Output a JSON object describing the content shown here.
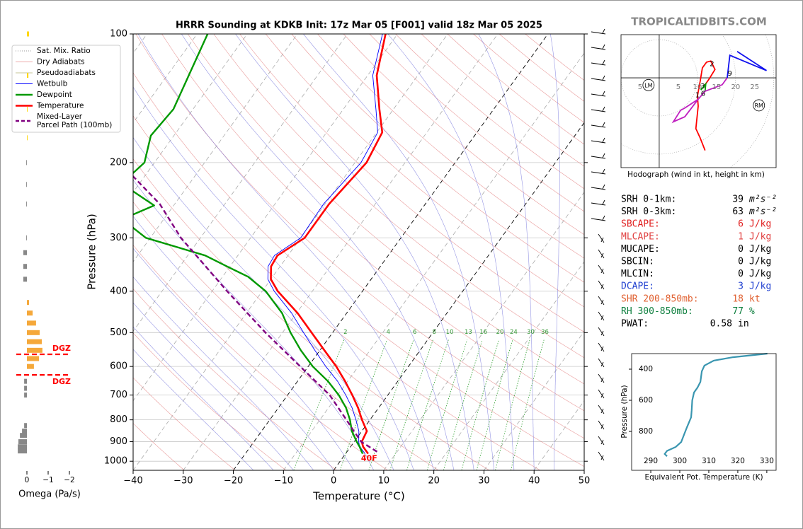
{
  "site": "TROPICALTIDBITS.COM",
  "chart_data": [
    {
      "type": "skewt",
      "title": "HRRR Sounding at KDKB Init: 17z Mar 05 [F001] valid 18z Mar 05 2025",
      "xlabel": "Temperature (°C)",
      "ylabel": "Pressure (hPa)",
      "xlim": [
        -40,
        50
      ],
      "ylim": [
        1050,
        100
      ],
      "log_scale": true,
      "grid": true,
      "xticks": [
        {
          "value": -40,
          "label": "−40"
        },
        {
          "value": -30,
          "label": "−30"
        },
        {
          "value": -20,
          "label": "−20"
        },
        {
          "value": -10,
          "label": "−10"
        },
        0,
        10,
        20,
        30,
        40,
        50
      ],
      "yticks": [
        100,
        200,
        300,
        400,
        500,
        600,
        700,
        800,
        900,
        1000
      ],
      "reference_lines": [
        {
          "name": "Sat. Mix. Ratio",
          "kind": "mixing_ratio",
          "color": "#2a9d2a",
          "legend_color": "#777777"
        },
        {
          "name": "Dry Adiabats",
          "kind": "dry",
          "color": "#e07070",
          "legend_color": "#e89090"
        },
        {
          "name": "Pseudoadiabats",
          "kind": "moist",
          "color": "#6a6ad8",
          "legend_color": "#b0b070"
        }
      ],
      "mixing_ratio_labels": [
        2,
        4,
        6,
        8,
        10,
        13,
        16,
        20,
        24,
        30,
        36
      ],
      "series": [
        {
          "name": "Wetbulb",
          "color": "#0000ff",
          "width": 0.9,
          "pressure": [
            960,
            925,
            900,
            850,
            800,
            750,
            700,
            650,
            600,
            550,
            500,
            450,
            400,
            375,
            350,
            330,
            300,
            250,
            200,
            170,
            150,
            125,
            100
          ],
          "values": [
            3.9,
            1.8,
            0.9,
            -0.6,
            -2.8,
            -5.3,
            -8.4,
            -12,
            -16.5,
            -21,
            -25.8,
            -31,
            -37.6,
            -40.6,
            -42.4,
            -42.7,
            -40,
            -40.3,
            -38.8,
            -39.8,
            -43.5,
            -49,
            -53
          ]
        },
        {
          "name": "Dewpoint",
          "color": "#009900",
          "width": 2.4,
          "pressure": [
            960,
            925,
            900,
            850,
            800,
            750,
            700,
            650,
            600,
            550,
            500,
            450,
            400,
            370,
            350,
            330,
            300,
            285,
            270,
            252,
            233,
            215,
            200,
            173,
            150,
            100
          ],
          "values": [
            3.4,
            1.8,
            0.5,
            -2,
            -4,
            -6.5,
            -9.8,
            -13.9,
            -19.1,
            -23.8,
            -28.4,
            -32.9,
            -39.3,
            -44.9,
            -50.6,
            -56.5,
            -70.9,
            -74.7,
            -78,
            -73.9,
            -80.3,
            -83,
            -82,
            -84.6,
            -83.9,
            -87.9
          ]
        },
        {
          "name": "Temperature",
          "color": "#ff0000",
          "width": 2.6,
          "pressure": [
            960,
            925,
            900,
            850,
            800,
            750,
            700,
            650,
            600,
            550,
            500,
            450,
            400,
            375,
            350,
            330,
            300,
            250,
            200,
            170,
            150,
            125,
            100
          ],
          "values": [
            4.5,
            2.5,
            1.5,
            1.0,
            -1.6,
            -4.1,
            -7.1,
            -10.5,
            -14.4,
            -19.1,
            -24.2,
            -29.8,
            -36.9,
            -40,
            -41.8,
            -42.1,
            -39.2,
            -39.2,
            -37.7,
            -38.9,
            -42.8,
            -48.2,
            -52.4
          ]
        },
        {
          "name": "Mixed-Layer\nParcel Path (100mb)",
          "color": "#800080",
          "width": 2.4,
          "dashed": true,
          "pressure": [
            950,
            900,
            850,
            800,
            700,
            600,
            500,
            400,
            300,
            250,
            215
          ],
          "values": [
            6,
            1.4,
            -1.6,
            -4.7,
            -11.6,
            -21.6,
            -33.4,
            -47,
            -63.9,
            -73,
            -82.4
          ]
        }
      ],
      "surface_label": "40F"
    },
    {
      "type": "hodograph",
      "xlabel": "Hodograph (wind in kt, height in km)",
      "xlim": [
        -10,
        30.6
      ],
      "ylim": [
        -23.5,
        11.3
      ],
      "xticks": [
        {
          "value": -5,
          "label": "5"
        },
        5,
        10,
        15,
        20,
        25
      ],
      "series": [
        {
          "color": "#ff0000",
          "x": [
            12,
            10.7,
            9.6,
            10.2,
            10,
            10.7,
            11.3,
            12.4,
            13.5,
            14.6,
            13,
            11.7
          ],
          "values": [
            -19,
            -15.7,
            -13.3,
            -7.4,
            -4.8,
            -1,
            2.6,
            4.1,
            4.4,
            2.2,
            -0.4,
            -2.2
          ]
        },
        {
          "color": "#00a000",
          "x": [
            11.7,
            10.9,
            12.2,
            12
          ],
          "values": [
            -2.2,
            -3.2,
            -1.6,
            -3.5
          ]
        },
        {
          "color": "#c020c0",
          "x": [
            17.8,
            16.5,
            12,
            10.2,
            6.7,
            5.6,
            3.7,
            6.7,
            10.2
          ],
          "values": [
            0,
            -1.8,
            -3.5,
            -5.6,
            -7.9,
            -8.5,
            -11.5,
            -10.2,
            -5.6
          ]
        },
        {
          "color": "#1010ee",
          "x": [
            17.8,
            18.5,
            28.1,
            20.4
          ],
          "values": [
            0,
            5.9,
            1.9,
            6.9
          ]
        }
      ],
      "heights": {
        "labels": [
          1,
          2,
          3,
          6,
          9
        ],
        "x": [
          10,
          13.8,
          11.4,
          11.5,
          18.5
        ],
        "values": [
          -4.5,
          3.6,
          -2.2,
          -4.2,
          1.1
        ]
      },
      "markers": {
        "labels": [
          "LM",
          "RM"
        ],
        "x": [
          -2.8,
          26.1
        ],
        "values": [
          -1.9,
          -7.2
        ]
      }
    },
    {
      "type": "line",
      "xlabel": "Equivalent Pot. Temperature (K)",
      "ylabel": "Pressure (hPa)",
      "xlim": [
        283.4,
        333.2
      ],
      "ylim": [
        1050,
        300
      ],
      "xticks": [
        290,
        300,
        310,
        320,
        330
      ],
      "yticks": [
        400,
        600,
        800
      ],
      "color": "#3a96b0",
      "pressure": [
        300,
        323,
        345,
        377,
        414,
        482,
        518,
        550,
        600,
        664,
        709,
        777,
        820,
        868,
        900,
        925,
        945,
        960
      ],
      "values": [
        330.2,
        318.3,
        311.7,
        308.5,
        307.6,
        307.1,
        306.1,
        304.9,
        304.3,
        304.1,
        303.9,
        302.4,
        301.5,
        300.5,
        298.6,
        295.6,
        294.8,
        295.6
      ]
    },
    {
      "type": "omega",
      "xlabel": "Omega (Pa/s)",
      "xlim": [
        0.6,
        -2.2
      ],
      "ylim": [
        1050,
        100
      ],
      "xticks": [
        0,
        {
          "value": -1,
          "label": "−1"
        },
        {
          "value": -2,
          "label": "−2"
        }
      ],
      "series": [
        {
          "color": "#888888",
          "pressure": [
            946,
            925,
            900,
            870,
            850,
            825,
            700,
            675,
            650,
            375,
            350,
            325,
            300,
            250,
            225,
            200
          ],
          "values": [
            0.43,
            0.43,
            0.4,
            0.33,
            0.23,
            0.13,
            0.13,
            0.13,
            0.13,
            0.17,
            0.17,
            0.17,
            0.03,
            0.03,
            0.03,
            0.03
          ]
        },
        {
          "color": "#f5a83a",
          "pressure": [
            425,
            450,
            475,
            500,
            525,
            550,
            575,
            600
          ],
          "values": [
            -0.1,
            -0.27,
            -0.43,
            -0.6,
            -0.7,
            -0.73,
            -0.57,
            -0.33
          ]
        },
        {
          "color": "#ffd700",
          "pressure": [
            100,
            125,
            150,
            175
          ],
          "values": [
            -0.1,
            -0.07,
            -0.03,
            -0.03
          ]
        }
      ],
      "dgz": {
        "label": "DGZ",
        "pressure": [
          562,
          628
        ]
      }
    }
  ],
  "parameters": [
    {
      "label": "SRH 0-1km:",
      "value": 39,
      "unit": "m²s⁻²",
      "color": "#000000"
    },
    {
      "label": "SRH 0-3km:",
      "value": 63,
      "unit": "m²s⁻²",
      "color": "#000000"
    },
    {
      "label": "SBCAPE:",
      "value": 6,
      "unit": "J/kg",
      "color": "#e02020"
    },
    {
      "label": "MLCAPE:",
      "value": 1,
      "unit": "J/kg",
      "color": "#e04040"
    },
    {
      "label": "MUCAPE:",
      "value": 0,
      "unit": "J/kg",
      "color": "#000000"
    },
    {
      "label": "SBCIN:",
      "value": 0,
      "unit": "J/kg",
      "color": "#000000"
    },
    {
      "label": "MLCIN:",
      "value": 0,
      "unit": "J/kg",
      "color": "#000000"
    },
    {
      "label": "DCAPE:",
      "value": 3,
      "unit": "J/kg",
      "color": "#2040d0"
    },
    {
      "label": "SHR 200-850mb:",
      "value": 18,
      "unit": "kt",
      "color": "#e06030"
    },
    {
      "label": "RH 300-850mb:",
      "value": 77,
      "unit": "%",
      "color": "#108040"
    },
    {
      "label": "PWAT:",
      "value": 0.58,
      "unit": "in",
      "color": "#000000"
    }
  ]
}
